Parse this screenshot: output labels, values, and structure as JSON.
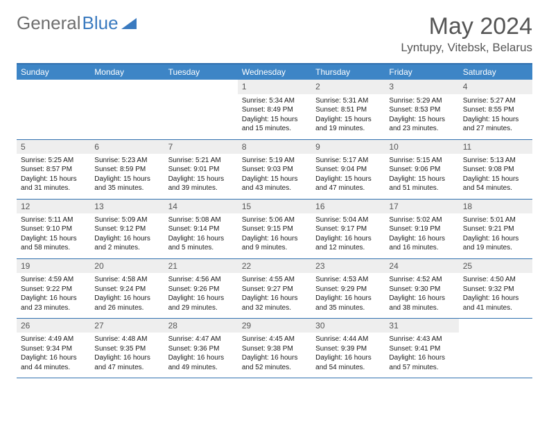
{
  "logo": {
    "text_gray": "General",
    "text_blue": "Blue"
  },
  "title": "May 2024",
  "location": "Lyntupy, Vitebsk, Belarus",
  "colors": {
    "header_bg": "#3d85c6",
    "header_border": "#2f6fae",
    "daynum_bg": "#eeeeee",
    "text_muted": "#555555",
    "logo_gray": "#6e6e6e",
    "logo_blue": "#3a7abf"
  },
  "day_names": [
    "Sunday",
    "Monday",
    "Tuesday",
    "Wednesday",
    "Thursday",
    "Friday",
    "Saturday"
  ],
  "weeks": [
    [
      null,
      null,
      null,
      {
        "n": "1",
        "sr": "Sunrise: 5:34 AM",
        "ss": "Sunset: 8:49 PM",
        "d1": "Daylight: 15 hours",
        "d2": "and 15 minutes."
      },
      {
        "n": "2",
        "sr": "Sunrise: 5:31 AM",
        "ss": "Sunset: 8:51 PM",
        "d1": "Daylight: 15 hours",
        "d2": "and 19 minutes."
      },
      {
        "n": "3",
        "sr": "Sunrise: 5:29 AM",
        "ss": "Sunset: 8:53 PM",
        "d1": "Daylight: 15 hours",
        "d2": "and 23 minutes."
      },
      {
        "n": "4",
        "sr": "Sunrise: 5:27 AM",
        "ss": "Sunset: 8:55 PM",
        "d1": "Daylight: 15 hours",
        "d2": "and 27 minutes."
      }
    ],
    [
      {
        "n": "5",
        "sr": "Sunrise: 5:25 AM",
        "ss": "Sunset: 8:57 PM",
        "d1": "Daylight: 15 hours",
        "d2": "and 31 minutes."
      },
      {
        "n": "6",
        "sr": "Sunrise: 5:23 AM",
        "ss": "Sunset: 8:59 PM",
        "d1": "Daylight: 15 hours",
        "d2": "and 35 minutes."
      },
      {
        "n": "7",
        "sr": "Sunrise: 5:21 AM",
        "ss": "Sunset: 9:01 PM",
        "d1": "Daylight: 15 hours",
        "d2": "and 39 minutes."
      },
      {
        "n": "8",
        "sr": "Sunrise: 5:19 AM",
        "ss": "Sunset: 9:03 PM",
        "d1": "Daylight: 15 hours",
        "d2": "and 43 minutes."
      },
      {
        "n": "9",
        "sr": "Sunrise: 5:17 AM",
        "ss": "Sunset: 9:04 PM",
        "d1": "Daylight: 15 hours",
        "d2": "and 47 minutes."
      },
      {
        "n": "10",
        "sr": "Sunrise: 5:15 AM",
        "ss": "Sunset: 9:06 PM",
        "d1": "Daylight: 15 hours",
        "d2": "and 51 minutes."
      },
      {
        "n": "11",
        "sr": "Sunrise: 5:13 AM",
        "ss": "Sunset: 9:08 PM",
        "d1": "Daylight: 15 hours",
        "d2": "and 54 minutes."
      }
    ],
    [
      {
        "n": "12",
        "sr": "Sunrise: 5:11 AM",
        "ss": "Sunset: 9:10 PM",
        "d1": "Daylight: 15 hours",
        "d2": "and 58 minutes."
      },
      {
        "n": "13",
        "sr": "Sunrise: 5:09 AM",
        "ss": "Sunset: 9:12 PM",
        "d1": "Daylight: 16 hours",
        "d2": "and 2 minutes."
      },
      {
        "n": "14",
        "sr": "Sunrise: 5:08 AM",
        "ss": "Sunset: 9:14 PM",
        "d1": "Daylight: 16 hours",
        "d2": "and 5 minutes."
      },
      {
        "n": "15",
        "sr": "Sunrise: 5:06 AM",
        "ss": "Sunset: 9:15 PM",
        "d1": "Daylight: 16 hours",
        "d2": "and 9 minutes."
      },
      {
        "n": "16",
        "sr": "Sunrise: 5:04 AM",
        "ss": "Sunset: 9:17 PM",
        "d1": "Daylight: 16 hours",
        "d2": "and 12 minutes."
      },
      {
        "n": "17",
        "sr": "Sunrise: 5:02 AM",
        "ss": "Sunset: 9:19 PM",
        "d1": "Daylight: 16 hours",
        "d2": "and 16 minutes."
      },
      {
        "n": "18",
        "sr": "Sunrise: 5:01 AM",
        "ss": "Sunset: 9:21 PM",
        "d1": "Daylight: 16 hours",
        "d2": "and 19 minutes."
      }
    ],
    [
      {
        "n": "19",
        "sr": "Sunrise: 4:59 AM",
        "ss": "Sunset: 9:22 PM",
        "d1": "Daylight: 16 hours",
        "d2": "and 23 minutes."
      },
      {
        "n": "20",
        "sr": "Sunrise: 4:58 AM",
        "ss": "Sunset: 9:24 PM",
        "d1": "Daylight: 16 hours",
        "d2": "and 26 minutes."
      },
      {
        "n": "21",
        "sr": "Sunrise: 4:56 AM",
        "ss": "Sunset: 9:26 PM",
        "d1": "Daylight: 16 hours",
        "d2": "and 29 minutes."
      },
      {
        "n": "22",
        "sr": "Sunrise: 4:55 AM",
        "ss": "Sunset: 9:27 PM",
        "d1": "Daylight: 16 hours",
        "d2": "and 32 minutes."
      },
      {
        "n": "23",
        "sr": "Sunrise: 4:53 AM",
        "ss": "Sunset: 9:29 PM",
        "d1": "Daylight: 16 hours",
        "d2": "and 35 minutes."
      },
      {
        "n": "24",
        "sr": "Sunrise: 4:52 AM",
        "ss": "Sunset: 9:30 PM",
        "d1": "Daylight: 16 hours",
        "d2": "and 38 minutes."
      },
      {
        "n": "25",
        "sr": "Sunrise: 4:50 AM",
        "ss": "Sunset: 9:32 PM",
        "d1": "Daylight: 16 hours",
        "d2": "and 41 minutes."
      }
    ],
    [
      {
        "n": "26",
        "sr": "Sunrise: 4:49 AM",
        "ss": "Sunset: 9:34 PM",
        "d1": "Daylight: 16 hours",
        "d2": "and 44 minutes."
      },
      {
        "n": "27",
        "sr": "Sunrise: 4:48 AM",
        "ss": "Sunset: 9:35 PM",
        "d1": "Daylight: 16 hours",
        "d2": "and 47 minutes."
      },
      {
        "n": "28",
        "sr": "Sunrise: 4:47 AM",
        "ss": "Sunset: 9:36 PM",
        "d1": "Daylight: 16 hours",
        "d2": "and 49 minutes."
      },
      {
        "n": "29",
        "sr": "Sunrise: 4:45 AM",
        "ss": "Sunset: 9:38 PM",
        "d1": "Daylight: 16 hours",
        "d2": "and 52 minutes."
      },
      {
        "n": "30",
        "sr": "Sunrise: 4:44 AM",
        "ss": "Sunset: 9:39 PM",
        "d1": "Daylight: 16 hours",
        "d2": "and 54 minutes."
      },
      {
        "n": "31",
        "sr": "Sunrise: 4:43 AM",
        "ss": "Sunset: 9:41 PM",
        "d1": "Daylight: 16 hours",
        "d2": "and 57 minutes."
      },
      null
    ]
  ]
}
